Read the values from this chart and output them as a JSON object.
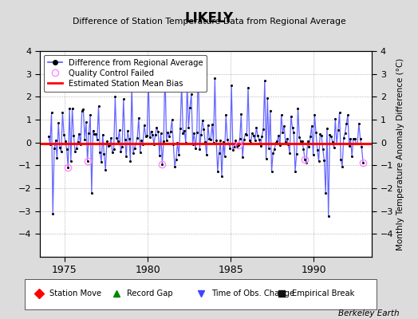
{
  "title": "LIKELY",
  "subtitle": "Difference of Station Temperature Data from Regional Average",
  "ylabel": "Monthly Temperature Anomaly Difference (°C)",
  "xlabel_years": [
    1975,
    1980,
    1985,
    1990
  ],
  "ylim": [
    -5,
    4
  ],
  "yticks": [
    -4,
    -3,
    -2,
    -1,
    0,
    1,
    2,
    3,
    4
  ],
  "xlim": [
    1973.5,
    1993.5
  ],
  "bias_value": -0.05,
  "background_color": "#dcdcdc",
  "plot_bg_color": "#ffffff",
  "line_color": "#5555ff",
  "dot_color": "#000000",
  "bias_color": "#ff0000",
  "qc_color": "#ff88ff",
  "berkeley_earth_text": "Berkeley Earth",
  "legend1_entries": [
    {
      "label": "Difference from Regional Average"
    },
    {
      "label": "Quality Control Failed"
    },
    {
      "label": "Estimated Station Mean Bias"
    }
  ],
  "legend2_entries": [
    {
      "label": "Station Move",
      "color": "#ff0000",
      "marker": "D"
    },
    {
      "label": "Record Gap",
      "color": "#008800",
      "marker": "^"
    },
    {
      "label": "Time of Obs. Change",
      "color": "#4444ff",
      "marker": "v"
    },
    {
      "label": "Empirical Break",
      "color": "#111111",
      "marker": "s"
    }
  ]
}
